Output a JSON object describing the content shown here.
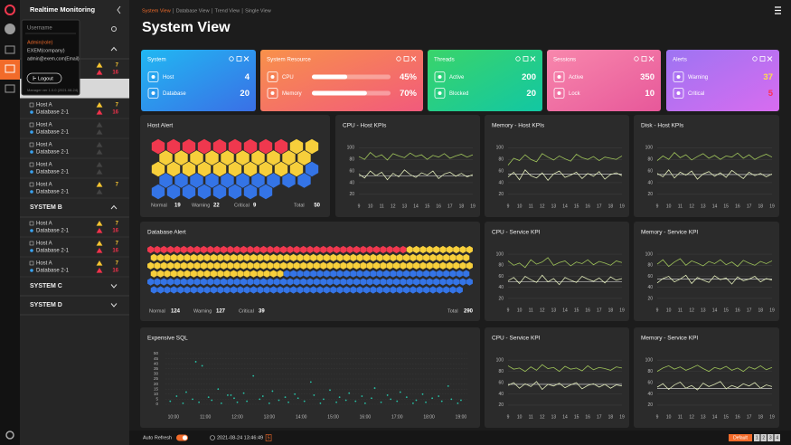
{
  "app": {
    "title": "Realtime Monitoring"
  },
  "user_menu": {
    "username": "Username",
    "role": "Admin(role)",
    "company": "EXEM(company)",
    "email": "admin@exem.com(Email)",
    "logout": "Logout",
    "version": "Manager ver 1.0.0 (2021.08.24)"
  },
  "sidebar": {
    "groups": [
      {
        "expanded": true,
        "items": [
          {
            "warning": 7,
            "critical": 16
          },
          {
            "selected": true
          },
          {
            "host": "Host A",
            "db": "Database 2-1",
            "warning": 7,
            "critical": 16
          },
          {
            "host": "Host A",
            "db": "Database 2-1"
          },
          {
            "host": "Host A",
            "db": "Database 2-1"
          },
          {
            "host": "Host A",
            "db": "Database 2-1"
          },
          {
            "host": "Host A",
            "db": "Database 2-1",
            "warning": 7
          }
        ]
      },
      {
        "name": "SYSTEM B",
        "expanded": true,
        "items": [
          {
            "host": "Host A",
            "db": "Database 2-1",
            "warning": 7,
            "critical": 16
          },
          {
            "host": "Host A",
            "db": "Database 2-1",
            "warning": 7,
            "critical": 16
          },
          {
            "host": "Host A",
            "db": "Database 2-1",
            "warning": 7,
            "critical": 16
          }
        ]
      },
      {
        "name": "SYSTEM C",
        "expanded": false,
        "items": []
      },
      {
        "name": "SYSTEM D",
        "expanded": false,
        "items": []
      }
    ]
  },
  "breadcrumb": {
    "tabs": [
      "System View",
      "Database View",
      "Trend View",
      "Single View"
    ],
    "active": 0
  },
  "page_title": "System View",
  "cards": [
    {
      "title": "System",
      "colors": [
        "#21b8f2",
        "#3a6fe6"
      ],
      "items": [
        {
          "label": "Host",
          "value": 4
        },
        {
          "label": "Database",
          "value": 20
        }
      ]
    },
    {
      "title": "System Resource",
      "colors": [
        "#f8914a",
        "#f25a7c"
      ],
      "bar": true,
      "items": [
        {
          "label": "CPU",
          "value": 45,
          "value_label": "45%"
        },
        {
          "label": "Memory",
          "value": 70,
          "value_label": "70%"
        }
      ]
    },
    {
      "title": "Threads",
      "colors": [
        "#3ad46a",
        "#12c7a3"
      ],
      "items": [
        {
          "label": "Active",
          "value": 200
        },
        {
          "label": "Blocked",
          "value": 20
        }
      ]
    },
    {
      "title": "Sessions",
      "colors": [
        "#f887ac",
        "#e7589a"
      ],
      "items": [
        {
          "label": "Active",
          "value": 350
        },
        {
          "label": "Lock",
          "value": 10
        }
      ]
    },
    {
      "title": "Alerts",
      "colors": [
        "#9d74f2",
        "#d86cf0"
      ],
      "items": [
        {
          "label": "Warning",
          "value": 37,
          "color": "#ffdf4a"
        },
        {
          "label": "Critical",
          "value": 5,
          "color": "#ff2f55"
        }
      ]
    }
  ],
  "host_alert": {
    "title": "Host Alert",
    "normal_label": "Normal",
    "normal": 19,
    "warning_label": "Warning",
    "warning": 22,
    "critical_label": "Critical",
    "critical": 9,
    "total_label": "Total",
    "total": 50,
    "colors": {
      "critical": "#f0384e",
      "warning": "#f7cf3b",
      "normal": "#3474e6"
    }
  },
  "database_alert": {
    "title": "Database Alert",
    "normal_label": "Normal",
    "normal": 124,
    "warning_label": "Warning",
    "warning": 127,
    "critical_label": "Critical",
    "critical": 39,
    "total_label": "Total",
    "total": 290,
    "colors": {
      "critical": "#f0384e",
      "warning": "#f7cf3b",
      "normal": "#3474e6"
    }
  },
  "kpi_charts": [
    {
      "type": "line",
      "title": "CPU - Host KPIs",
      "x": [
        9,
        9.5,
        10,
        10.5,
        11,
        11.5,
        12,
        12.5,
        13,
        13.5,
        14,
        14.5,
        15,
        15.5,
        16,
        16.5,
        17,
        17.5,
        18,
        18.5,
        19
      ],
      "series": [
        {
          "color": "#9fc45a",
          "values": [
            85,
            80,
            92,
            84,
            88,
            79,
            90,
            86,
            83,
            91,
            85,
            88,
            80,
            87,
            84,
            90,
            82,
            86,
            89,
            84,
            88
          ]
        },
        {
          "color": "#dfe9b8",
          "values": [
            55,
            48,
            60,
            52,
            58,
            45,
            56,
            50,
            62,
            54,
            49,
            57,
            53,
            60,
            47,
            55,
            58,
            51,
            56,
            50,
            54
          ]
        }
      ],
      "threshold": 52,
      "xlim": [
        9,
        19
      ],
      "ylim": [
        15,
        110
      ],
      "xticks": [
        9,
        10,
        11,
        12,
        13,
        14,
        15,
        16,
        17,
        18,
        19
      ],
      "yticks": [
        20,
        40,
        60,
        80,
        100
      ]
    },
    {
      "type": "line",
      "title": "Memory - Host KPIs",
      "x": [
        9,
        9.5,
        10,
        10.5,
        11,
        11.5,
        12,
        12.5,
        13,
        13.5,
        14,
        14.5,
        15,
        15.5,
        16,
        16.5,
        17,
        17.5,
        18,
        18.5,
        19
      ],
      "series": [
        {
          "color": "#9fc45a",
          "values": [
            70,
            82,
            78,
            88,
            80,
            76,
            90,
            84,
            79,
            86,
            81,
            77,
            89,
            83,
            80,
            85,
            78,
            84,
            82,
            80,
            86
          ]
        },
        {
          "color": "#dfe9b8",
          "values": [
            50,
            58,
            45,
            62,
            52,
            48,
            57,
            44,
            55,
            60,
            49,
            53,
            58,
            47,
            56,
            51,
            59,
            46,
            54,
            57,
            52
          ]
        }
      ],
      "threshold": 55,
      "xlim": [
        9,
        19
      ],
      "ylim": [
        15,
        110
      ],
      "xticks": [
        9,
        10,
        11,
        12,
        13,
        14,
        15,
        16,
        17,
        18,
        19
      ],
      "yticks": [
        20,
        40,
        60,
        80,
        100
      ]
    },
    {
      "type": "line",
      "title": "Disk - Host KPIs",
      "x": [
        9,
        9.5,
        10,
        10.5,
        11,
        11.5,
        12,
        12.5,
        13,
        13.5,
        14,
        14.5,
        15,
        15.5,
        16,
        16.5,
        17,
        17.5,
        18,
        18.5,
        19
      ],
      "series": [
        {
          "color": "#9fc45a",
          "values": [
            78,
            86,
            80,
            92,
            83,
            88,
            79,
            85,
            90,
            82,
            87,
            80,
            86,
            84,
            91,
            82,
            88,
            80,
            85,
            89,
            84
          ]
        },
        {
          "color": "#dfe9b8",
          "values": [
            56,
            50,
            62,
            48,
            58,
            53,
            60,
            46,
            55,
            59,
            51,
            57,
            49,
            61,
            54,
            47,
            58,
            52,
            56,
            50,
            55
          ]
        }
      ],
      "threshold": 54,
      "xlim": [
        9,
        19
      ],
      "ylim": [
        15,
        110
      ],
      "xticks": [
        9,
        10,
        11,
        12,
        13,
        14,
        15,
        16,
        17,
        18,
        19
      ],
      "yticks": [
        20,
        40,
        60,
        80,
        100
      ]
    },
    {
      "type": "line",
      "title": "CPU - Service KPI",
      "x": [
        9,
        9.5,
        10,
        10.5,
        11,
        11.5,
        12,
        12.5,
        13,
        13.5,
        14,
        14.5,
        15,
        15.5,
        16,
        16.5,
        17,
        17.5,
        18,
        18.5,
        19
      ],
      "series": [
        {
          "color": "#9fc45a",
          "values": [
            88,
            80,
            84,
            76,
            90,
            82,
            86,
            94,
            80,
            85,
            88,
            79,
            86,
            83,
            90,
            81,
            87,
            84,
            80,
            88,
            85
          ]
        },
        {
          "color": "#dfe9b8",
          "values": [
            52,
            58,
            47,
            60,
            54,
            49,
            62,
            50,
            56,
            45,
            58,
            53,
            49,
            60,
            55,
            51,
            57,
            48,
            59,
            53,
            56
          ]
        }
      ],
      "threshold": 50,
      "xlim": [
        9,
        19
      ],
      "ylim": [
        15,
        110
      ],
      "xticks": [
        9,
        10,
        11,
        12,
        13,
        14,
        15,
        16,
        17,
        18,
        19
      ],
      "yticks": [
        20,
        40,
        60,
        80,
        100
      ]
    },
    {
      "type": "line",
      "title": "Memory - Service KPI",
      "x": [
        9,
        9.5,
        10,
        10.5,
        11,
        11.5,
        12,
        12.5,
        13,
        13.5,
        14,
        14.5,
        15,
        15.5,
        16,
        16.5,
        17,
        17.5,
        18,
        18.5,
        19
      ],
      "series": [
        {
          "color": "#9fc45a",
          "values": [
            82,
            90,
            78,
            86,
            92,
            80,
            88,
            84,
            79,
            87,
            83,
            90,
            81,
            86,
            78,
            89,
            84,
            80,
            87,
            83,
            88
          ]
        },
        {
          "color": "#dfe9b8",
          "values": [
            48,
            56,
            60,
            50,
            55,
            62,
            47,
            58,
            53,
            49,
            61,
            54,
            57,
            46,
            59,
            52,
            55,
            60,
            50,
            56,
            53
          ]
        }
      ],
      "threshold": 55,
      "xlim": [
        9,
        19
      ],
      "ylim": [
        15,
        110
      ],
      "xticks": [
        9,
        10,
        11,
        12,
        13,
        14,
        15,
        16,
        17,
        18,
        19
      ],
      "yticks": [
        20,
        40,
        60,
        80,
        100
      ]
    },
    {
      "type": "line",
      "title": "CPU - Service KPI",
      "x": [
        9,
        9.5,
        10,
        10.5,
        11,
        11.5,
        12,
        12.5,
        13,
        13.5,
        14,
        14.5,
        15,
        15.5,
        16,
        16.5,
        17,
        17.5,
        18,
        18.5,
        19
      ],
      "series": [
        {
          "color": "#9fc45a",
          "values": [
            90,
            84,
            86,
            80,
            88,
            82,
            92,
            85,
            87,
            80,
            89,
            84,
            86,
            81,
            90,
            83,
            87,
            85,
            82,
            88,
            86
          ]
        },
        {
          "color": "#dfe9b8",
          "values": [
            55,
            60,
            50,
            58,
            53,
            62,
            48,
            57,
            54,
            59,
            51,
            56,
            60,
            49,
            55,
            58,
            52,
            57,
            50,
            56,
            54
          ]
        }
      ],
      "threshold": 57,
      "xlim": [
        9,
        19
      ],
      "ylim": [
        15,
        110
      ],
      "xticks": [
        9,
        10,
        11,
        12,
        13,
        14,
        15,
        16,
        17,
        18,
        19
      ],
      "yticks": [
        20,
        40,
        60,
        80,
        100
      ]
    },
    {
      "type": "line",
      "title": "Memory - Service KPI",
      "x": [
        9,
        9.5,
        10,
        10.5,
        11,
        11.5,
        12,
        12.5,
        13,
        13.5,
        14,
        14.5,
        15,
        15.5,
        16,
        16.5,
        17,
        17.5,
        18,
        18.5,
        19
      ],
      "series": [
        {
          "color": "#9fc45a",
          "values": [
            80,
            86,
            90,
            84,
            88,
            82,
            86,
            91,
            85,
            80,
            87,
            84,
            89,
            82,
            86,
            80,
            88,
            84,
            90,
            83,
            87
          ]
        },
        {
          "color": "#dfe9b8",
          "values": [
            52,
            58,
            48,
            56,
            61,
            50,
            55,
            47,
            59,
            53,
            57,
            62,
            49,
            55,
            51,
            58,
            54,
            60,
            50,
            56,
            53
          ]
        }
      ],
      "threshold": 50,
      "xlim": [
        9,
        19
      ],
      "ylim": [
        15,
        110
      ],
      "xticks": [
        9,
        10,
        11,
        12,
        13,
        14,
        15,
        16,
        17,
        18,
        19
      ],
      "yticks": [
        20,
        40,
        60,
        80,
        100
      ]
    }
  ],
  "expensive_sql": {
    "type": "scatter",
    "title": "Expensive SQL",
    "color": "#27c4a8",
    "x": [
      9.9,
      10.1,
      10.3,
      10.4,
      10.6,
      10.8,
      10.9,
      11.1,
      11.2,
      11.4,
      11.5,
      11.7,
      11.9,
      12.0,
      12.2,
      12.3,
      12.5,
      12.7,
      12.8,
      13.0,
      13.1,
      13.3,
      13.5,
      13.6,
      13.8,
      13.9,
      14.1,
      14.3,
      14.4,
      14.6,
      14.7,
      14.9,
      15.1,
      15.2,
      15.4,
      15.5,
      15.7,
      15.9,
      16.0,
      16.2,
      16.3,
      16.5,
      16.7,
      16.8,
      17.0,
      17.1,
      17.3,
      17.5,
      17.6,
      17.8,
      17.9,
      18.1,
      18.3,
      18.4,
      18.6,
      18.7,
      18.9,
      19.0,
      10.7,
      11.8
    ],
    "y": [
      3,
      8,
      1,
      12,
      5,
      2,
      38,
      7,
      4,
      15,
      1,
      9,
      6,
      2,
      11,
      3,
      28,
      5,
      8,
      1,
      13,
      4,
      7,
      2,
      10,
      6,
      3,
      22,
      9,
      1,
      5,
      14,
      2,
      7,
      4,
      11,
      3,
      8,
      1,
      6,
      16,
      2,
      9,
      5,
      3,
      12,
      7,
      1,
      4,
      10,
      2,
      6,
      8,
      3,
      18,
      5,
      1,
      4,
      42,
      9
    ],
    "xlim": [
      9.75,
      19.2
    ],
    "ylim": [
      0,
      50
    ],
    "xticks": [
      {
        "value": 10,
        "label": "10:00"
      },
      {
        "value": 11,
        "label": "11:00"
      },
      {
        "value": 12,
        "label": "12:00"
      },
      {
        "value": 13,
        "label": "13:00"
      },
      {
        "value": 14,
        "label": "14:00"
      },
      {
        "value": 15,
        "label": "15:00"
      },
      {
        "value": 16,
        "label": "16:00"
      },
      {
        "value": 17,
        "label": "17:00"
      },
      {
        "value": 18,
        "label": "18:00"
      },
      {
        "value": 19,
        "label": "19:00"
      }
    ],
    "yticks": [
      0,
      5,
      10,
      15,
      20,
      25,
      30,
      35,
      40,
      45,
      50
    ]
  },
  "footer": {
    "auto_refresh": "Auto Refresh",
    "auto_refresh_on": true,
    "timestamp": "2021-08-24 13:46:49",
    "interval": 5,
    "preset": "Default",
    "pages": [
      1,
      2,
      3,
      4
    ]
  }
}
